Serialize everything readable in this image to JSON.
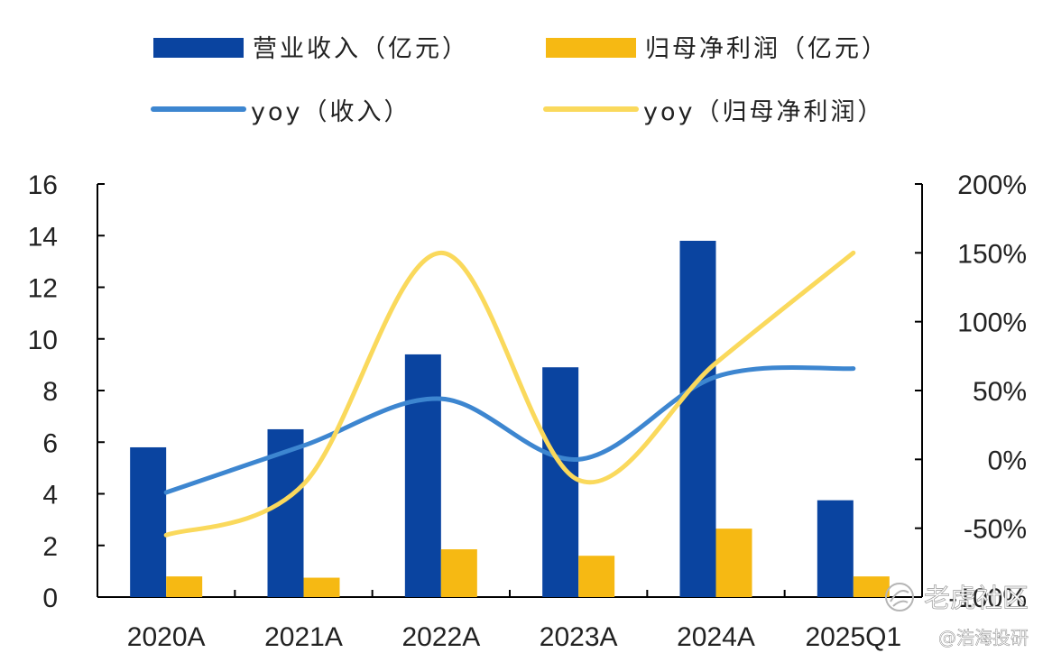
{
  "chart_data": {
    "type": "bar",
    "categories": [
      "2020A",
      "2021A",
      "2022A",
      "2023A",
      "2024A",
      "2025Q1"
    ],
    "series": [
      {
        "name": "营业收入（亿元）",
        "kind": "bar",
        "axis": "left",
        "color": "#0a44a0",
        "values": [
          5.8,
          6.5,
          9.4,
          8.9,
          13.8,
          3.75
        ]
      },
      {
        "name": "归母净利润（亿元）",
        "kind": "bar",
        "axis": "left",
        "color": "#f6b913",
        "values": [
          0.8,
          0.75,
          1.85,
          1.6,
          2.65,
          0.8
        ]
      },
      {
        "name": "yoy（收入）",
        "kind": "line",
        "axis": "right",
        "color": "#3d86d0",
        "values": [
          -24,
          10,
          44,
          0,
          60,
          66
        ]
      },
      {
        "name": "yoy（归母净利润）",
        "kind": "line",
        "axis": "right",
        "color": "#fad95c",
        "values": [
          -55,
          -18,
          150,
          -15,
          70,
          150
        ]
      }
    ],
    "y_left": {
      "ylim": [
        0,
        16
      ],
      "ticks": [
        "0",
        "2",
        "4",
        "6",
        "8",
        "10",
        "12",
        "14",
        "16"
      ]
    },
    "y_right": {
      "ylim": [
        -100,
        200
      ],
      "ticks": [
        "-100%",
        "-50%",
        "0%",
        "50%",
        "100%",
        "150%",
        "200%"
      ]
    },
    "legend": {
      "placement": "top",
      "columns": 2
    },
    "grid": false
  },
  "watermarks": {
    "top": "老虎社区",
    "bottom": "@浩海投研"
  }
}
